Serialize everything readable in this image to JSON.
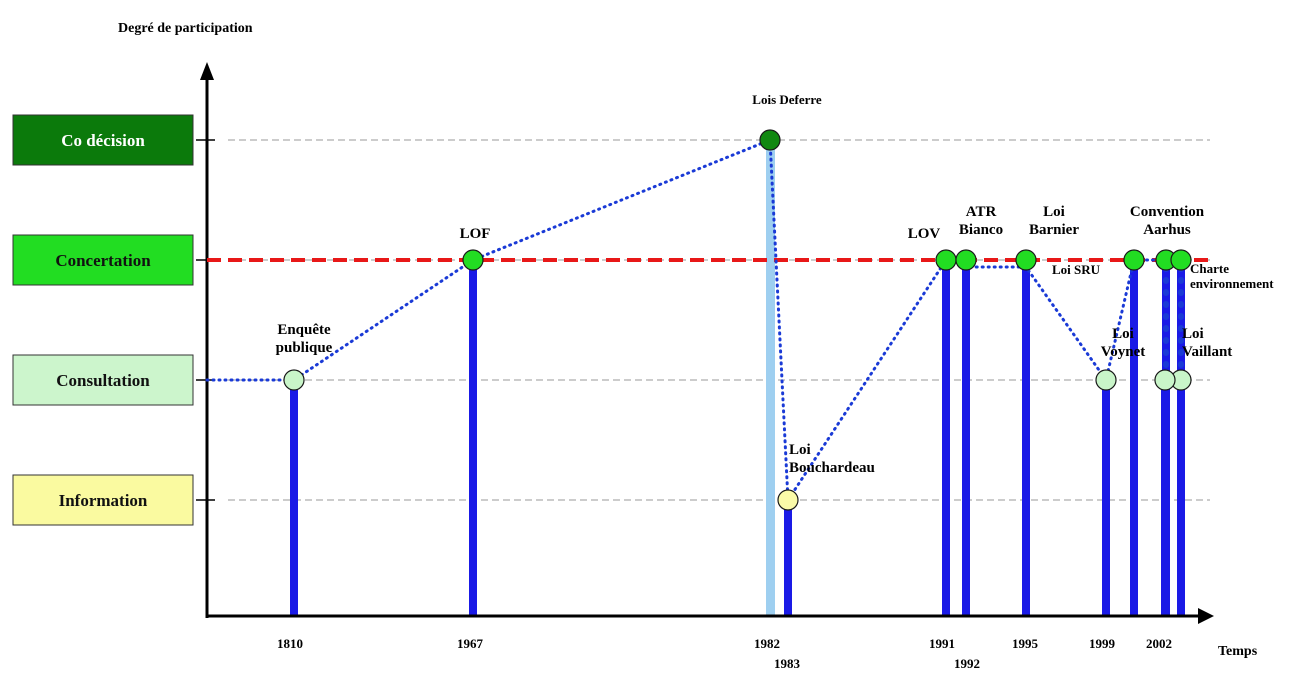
{
  "chart_data": {
    "type": "line",
    "ylabel": "Degré de participation",
    "xlabel": "Temps",
    "levels": [
      {
        "name": "Co décision",
        "fill": "#0b7a0b",
        "text_color": "#ffffff"
      },
      {
        "name": "Concertation",
        "fill": "#22dd22",
        "text_color": "#111111"
      },
      {
        "name": "Consultation",
        "fill": "#ccf5cc",
        "text_color": "#111111"
      },
      {
        "name": "Information",
        "fill": "#fafaa0",
        "text_color": "#111111"
      }
    ],
    "threshold_level": "Concertation",
    "x_ticks": [
      "1810",
      "1967",
      "1982",
      "1983",
      "1991",
      "1992",
      "1995",
      "1999",
      "2002"
    ],
    "events": [
      {
        "label": "Enquête publique",
        "year": 1810,
        "level": "Consultation"
      },
      {
        "label": "LOF",
        "year": 1967,
        "level": "Concertation"
      },
      {
        "label": "Lois Deferre",
        "year": 1982,
        "level": "Co décision"
      },
      {
        "label": "Loi Bouchardeau",
        "year": 1983,
        "level": "Information"
      },
      {
        "label": "LOV",
        "year": 1991,
        "level": "Concertation"
      },
      {
        "label": "ATR Bianco",
        "year": 1992,
        "level": "Concertation"
      },
      {
        "label": "Loi Barnier",
        "year": 1995,
        "level": "Concertation"
      },
      {
        "label": "Loi Voynet",
        "year": 1999,
        "level": "Consultation"
      },
      {
        "label": "Loi SRU",
        "year": 2000,
        "level": "Concertation"
      },
      {
        "label": "Convention Aarhus",
        "year": 2002,
        "level": "Concertation"
      },
      {
        "label": "Charte environnement",
        "year": 2002,
        "level": "Concertation"
      },
      {
        "label": "Loi Vaillant",
        "year": 2002,
        "level": "Consultation"
      }
    ],
    "colors": {
      "bar": "#1a1ae6",
      "bar_highlight": "#9ecff0",
      "dotted_path": "#1a3ad6",
      "threshold_line": "#e81818",
      "grid": "#999999",
      "marker_consultation": "#c9f5c9",
      "marker_information": "#fafaa8",
      "marker_concertation": "#22dd22",
      "marker_codecision": "#118811"
    }
  }
}
